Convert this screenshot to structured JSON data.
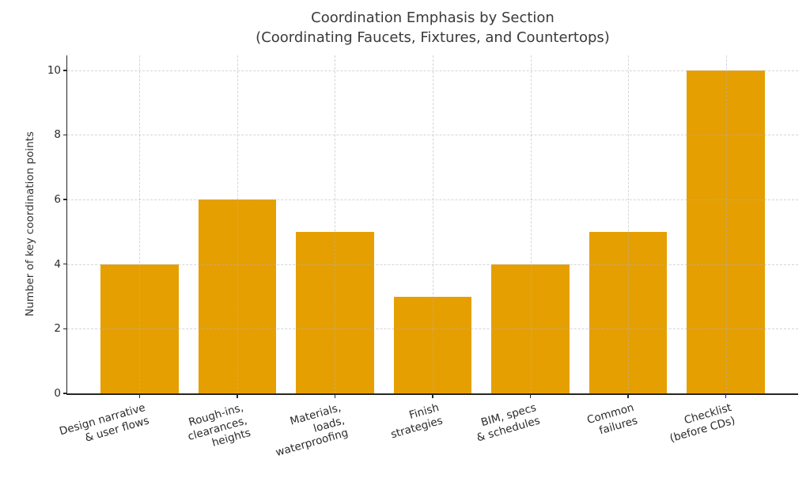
{
  "chart_data": {
    "type": "bar",
    "title": "Coordination Emphasis by Section",
    "subtitle": "(Coordinating Faucets, Fixtures, and Countertops)",
    "xlabel": "",
    "ylabel": "Number of key coordination points",
    "categories": [
      [
        "Design narrative",
        "& user flows"
      ],
      [
        "Rough-ins,",
        "clearances,",
        "heights"
      ],
      [
        "Materials,",
        "loads,",
        "waterproofing"
      ],
      [
        "Finish",
        "strategies"
      ],
      [
        "BIM, specs",
        "& schedules"
      ],
      [
        "Common",
        "failures"
      ],
      [
        "Checklist",
        "(before CDs)"
      ]
    ],
    "values": [
      4,
      6,
      5,
      3,
      4,
      5,
      10
    ],
    "yticks": [
      0,
      2,
      4,
      6,
      8,
      10
    ],
    "ylim": [
      0,
      10.46
    ],
    "bar_rel_width": 0.8,
    "x_edge_pad_units": 0.74,
    "grid": "dashed, horizontal and vertical, drawn above bars",
    "legend": "none",
    "colors": {
      "bar": "#E69F00",
      "grid": "#b2b2b2",
      "spine": "#262626",
      "text": "#2b2b2b",
      "title": "#3a3a3a",
      "background": "#ffffff"
    }
  }
}
